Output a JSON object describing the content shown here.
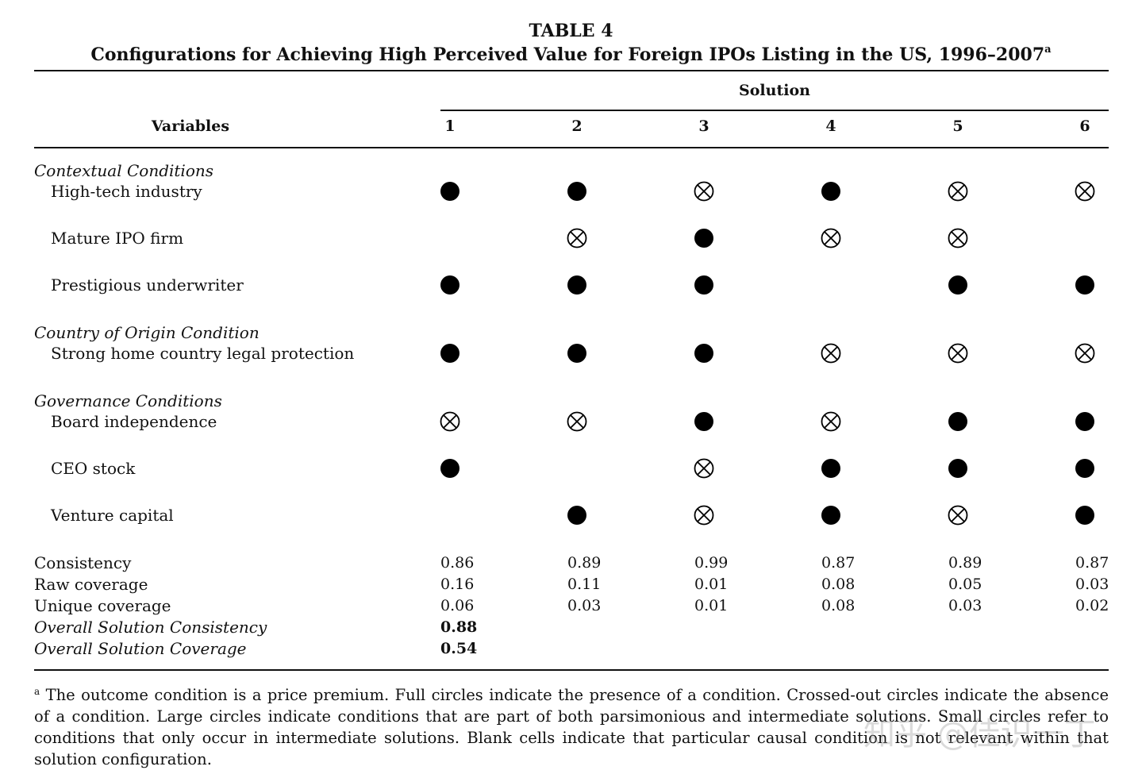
{
  "title": "TABLE 4",
  "subtitle": "Configurations for Achieving High Perceived Value for Foreign IPOs Listing in the US, 1996–2007",
  "subtitle_footnote_mark": "a",
  "header": {
    "variables_label": "Variables",
    "solution_label": "Solution",
    "solutions": [
      "1",
      "2",
      "3",
      "4",
      "5",
      "6"
    ]
  },
  "legend_symbols": {
    "present": "filled-circle",
    "absent": "crossed-out-circle",
    "blank": "empty"
  },
  "sections": [
    {
      "heading": "Contextual Conditions",
      "rows": [
        {
          "label": "High-tech industry",
          "cells": [
            "present",
            "present",
            "absent",
            "present",
            "absent",
            "absent"
          ]
        },
        {
          "label": "Mature IPO firm",
          "cells": [
            "blank",
            "absent",
            "present",
            "absent",
            "absent",
            "blank"
          ]
        },
        {
          "label": "Prestigious underwriter",
          "cells": [
            "present",
            "present",
            "present",
            "blank",
            "present",
            "present"
          ]
        }
      ]
    },
    {
      "heading": "Country of Origin Condition",
      "rows": [
        {
          "label": "Strong home country legal protection",
          "cells": [
            "present",
            "present",
            "present",
            "absent",
            "absent",
            "absent"
          ]
        }
      ]
    },
    {
      "heading": "Governance Conditions",
      "rows": [
        {
          "label": "Board independence",
          "cells": [
            "absent",
            "absent",
            "present",
            "absent",
            "present",
            "present"
          ]
        },
        {
          "label": "CEO stock",
          "cells": [
            "present",
            "blank",
            "absent",
            "present",
            "present",
            "present"
          ]
        },
        {
          "label": "Venture capital",
          "cells": [
            "blank",
            "present",
            "absent",
            "present",
            "absent",
            "present"
          ]
        }
      ]
    }
  ],
  "stats": [
    {
      "label": "Consistency",
      "values": [
        "0.86",
        "0.89",
        "0.99",
        "0.87",
        "0.89",
        "0.87"
      ]
    },
    {
      "label": "Raw coverage",
      "values": [
        "0.16",
        "0.11",
        "0.01",
        "0.08",
        "0.05",
        "0.03"
      ]
    },
    {
      "label": "Unique coverage",
      "values": [
        "0.06",
        "0.03",
        "0.01",
        "0.08",
        "0.03",
        "0.02"
      ]
    }
  ],
  "overall": [
    {
      "label": "Overall Solution Consistency",
      "value": "0.88"
    },
    {
      "label": "Overall Solution Coverage",
      "value": "0.54"
    }
  ],
  "footnote": {
    "mark": "a",
    "text": " The outcome condition is a price premium. Full circles indicate the presence of a condition. Crossed-out circles indicate the absence of a condition. Large circles indicate conditions that are part of both parsimonious and intermediate solutions. Small circles refer to conditions that only occur in intermediate solutions. Blank cells indicate that particular causal condition is not relevant within that solution configuration."
  },
  "watermark": "知乎 @佳识一丁"
}
